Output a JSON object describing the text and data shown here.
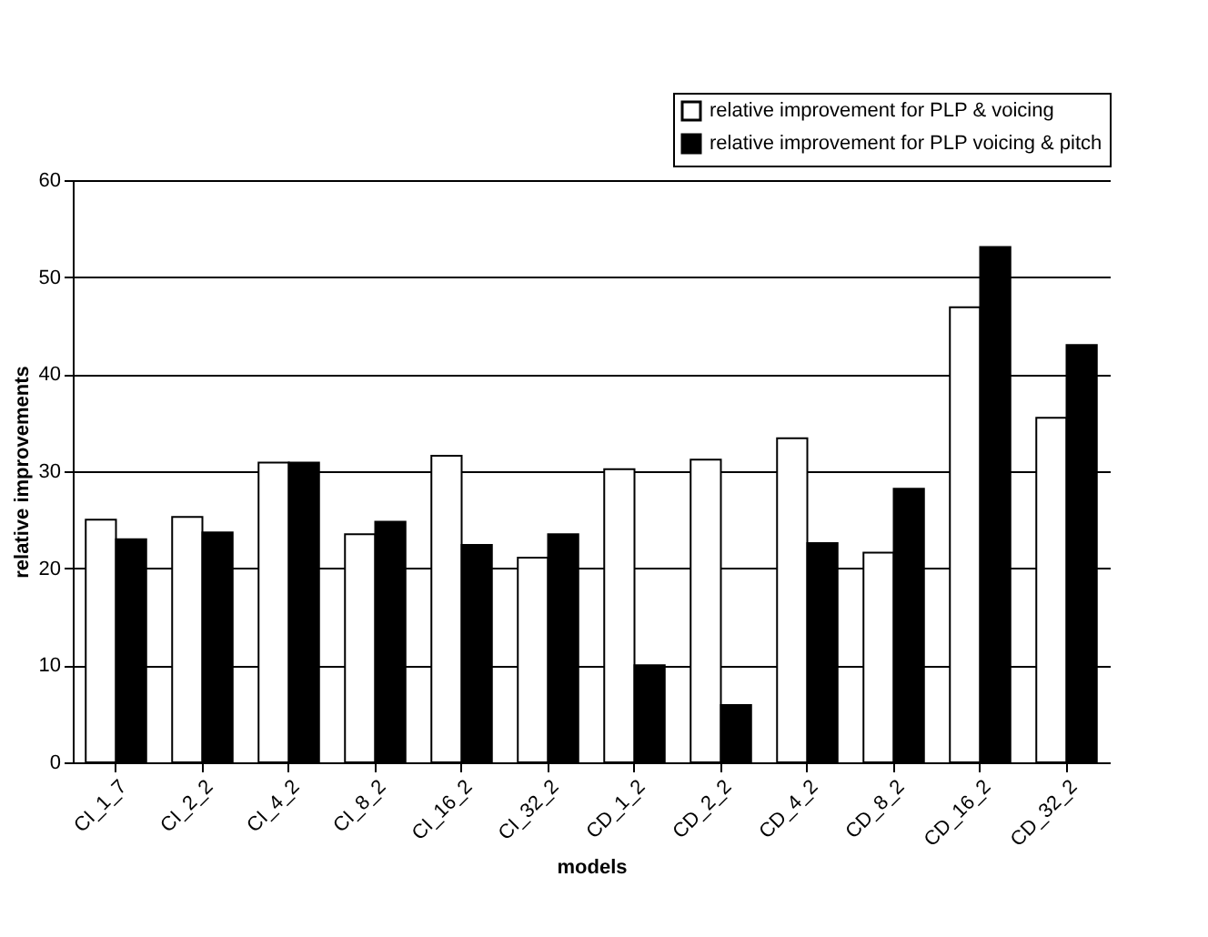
{
  "chart_data": {
    "type": "bar",
    "xlabel": "models",
    "ylabel": "relative improvements",
    "categories": [
      "CI_1_7",
      "CI_2_2",
      "CI_4_2",
      "CI_8_2",
      "CI_16_2",
      "CI_32_2",
      "CD_1_2",
      "CD_2_2",
      "CD_4_2",
      "CD_8_2",
      "CD_16_2",
      "CD_32_2"
    ],
    "series": [
      {
        "name": "relative improvement for PLP & voicing",
        "color": "#ffffff",
        "values": [
          25,
          25.3,
          30.9,
          23.5,
          31.6,
          21.1,
          30.2,
          31.2,
          33.4,
          21.6,
          46.9,
          35.5
        ]
      },
      {
        "name": "relative improvement for PLP voicing & pitch",
        "color": "#000000",
        "values": [
          23,
          23.7,
          30.9,
          24.8,
          22.4,
          23.5,
          10,
          5.9,
          22.6,
          28.2,
          53.1,
          43
        ]
      }
    ],
    "ylim": [
      0,
      60
    ],
    "yticks": [
      0,
      10,
      20,
      30,
      40,
      50,
      60
    ],
    "grid": "y",
    "legend": "top right"
  }
}
